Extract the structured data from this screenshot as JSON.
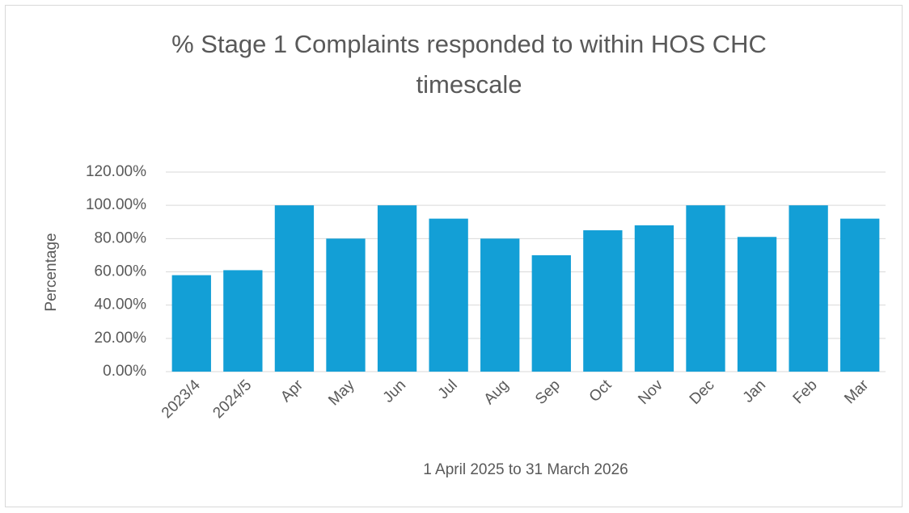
{
  "chart_data": {
    "type": "bar",
    "title": "% Stage 1 Complaints responded to within HOS CHC timescale",
    "x_label": "1 April 2025 to 31 March 2026",
    "y_label": "Percentage",
    "categories": [
      "2023/4",
      "2024/5",
      "Apr",
      "May",
      "Jun",
      "Jul",
      "Aug",
      "Sep",
      "Oct",
      "Nov",
      "Dec",
      "Jan",
      "Feb",
      "Mar"
    ],
    "values": [
      58,
      61,
      100,
      80,
      100,
      92,
      80,
      70,
      85,
      88,
      100,
      81,
      100,
      92
    ],
    "color": "#139fd6",
    "ylim": [
      0,
      120
    ],
    "yticks": [
      {
        "value": 0,
        "label": "0.00%"
      },
      {
        "value": 20,
        "label": "20.00%"
      },
      {
        "value": 40,
        "label": "40.00%"
      },
      {
        "value": 60,
        "label": "60.00%"
      },
      {
        "value": 80,
        "label": "80.00%"
      },
      {
        "value": 100,
        "label": "100.00%"
      },
      {
        "value": 120,
        "label": "120.00%"
      }
    ],
    "grid": true
  }
}
